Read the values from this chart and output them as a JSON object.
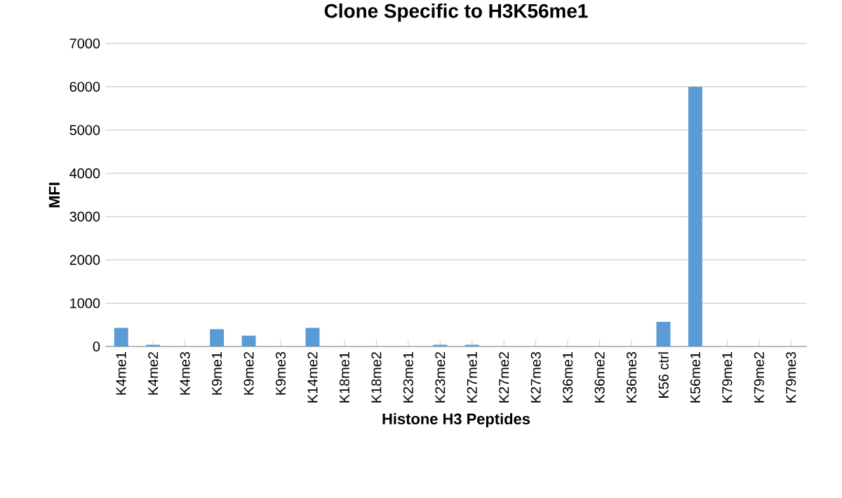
{
  "chart_data": {
    "type": "bar",
    "title": "Clone Specific to H3K56me1",
    "xlabel": "Histone H3 Peptides",
    "ylabel": "MFI",
    "categories": [
      "K4me1",
      "K4me2",
      "K4me3",
      "K9me1",
      "K9me2",
      "K9me3",
      "K14me2",
      "K18me1",
      "K18me2",
      "K23me1",
      "K23me2",
      "K27me1",
      "K27me2",
      "K27me3",
      "K36me1",
      "K36me2",
      "K36me3",
      "K56 ctrl",
      "K56me1",
      "K79me1",
      "K79me2",
      "K79me3"
    ],
    "values": [
      430,
      40,
      0,
      400,
      250,
      0,
      430,
      0,
      0,
      0,
      40,
      40,
      0,
      0,
      0,
      0,
      0,
      570,
      6000,
      0,
      0,
      0
    ],
    "color": "#5b9bd5",
    "ylim": [
      0,
      7000
    ],
    "yticks": [
      0,
      1000,
      2000,
      3000,
      4000,
      5000,
      6000,
      7000
    ],
    "grid": "y"
  }
}
